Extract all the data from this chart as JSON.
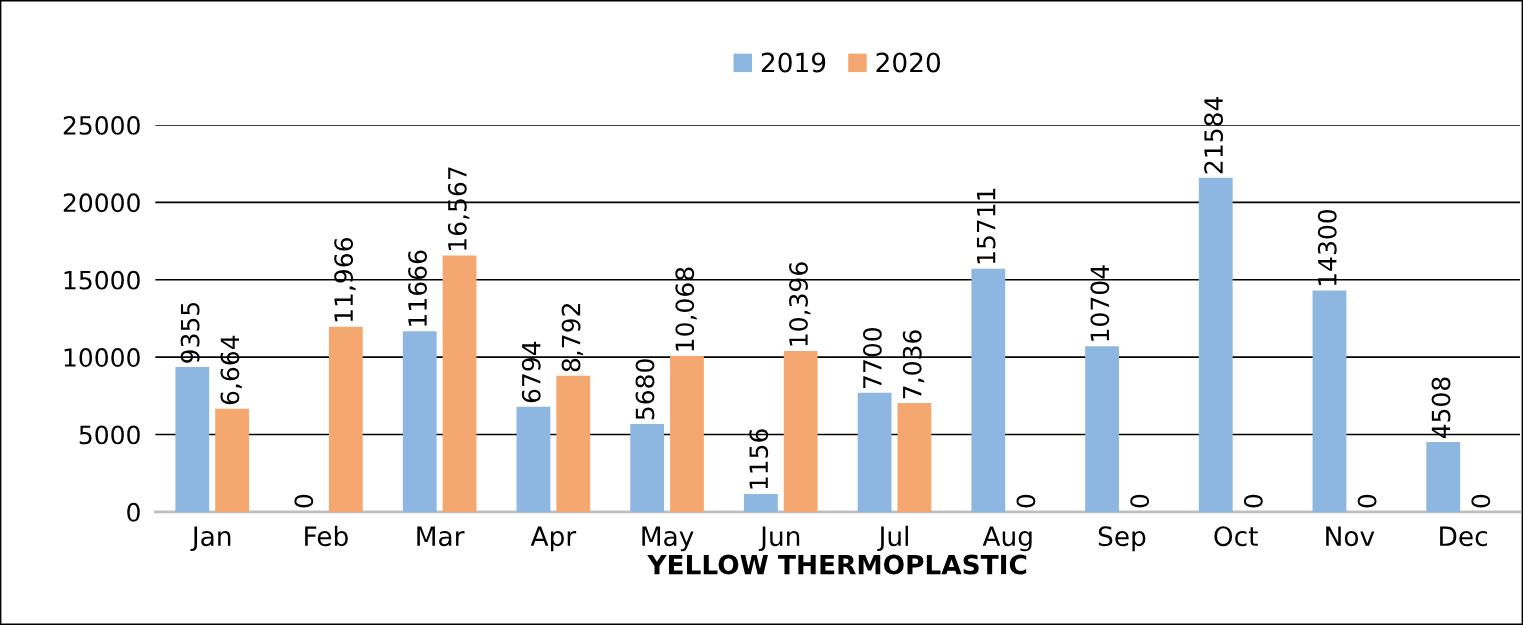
{
  "chart_data": {
    "type": "bar",
    "xlabel": "YELLOW THERMOPLASTIC",
    "categories": [
      "Jan",
      "Feb",
      "Mar",
      "Apr",
      "May",
      "Jun",
      "Jul",
      "Aug",
      "Sep",
      "Oct",
      "Nov",
      "Dec"
    ],
    "series": [
      {
        "name": "2019",
        "color": "#8db7e0",
        "values": [
          9355,
          0,
          11666,
          6794,
          5680,
          1156,
          7700,
          15711,
          10704,
          21584,
          14300,
          4508
        ],
        "value_labels": [
          "9355",
          "0",
          "11666",
          "6794",
          "5680",
          "1156",
          "7700",
          "15711",
          "10704",
          "21584",
          "14300",
          "4508"
        ]
      },
      {
        "name": "2020",
        "color": "#f4a86f",
        "values": [
          6664,
          11966,
          16567,
          8792,
          10068,
          10396,
          7036,
          0,
          0,
          0,
          0,
          0
        ],
        "value_labels": [
          "6,664",
          "11,966",
          "16,567",
          "8,792",
          "10,068",
          "10,396",
          "7,036",
          "0",
          "0",
          "0",
          "0",
          "0"
        ]
      }
    ],
    "ylim": [
      0,
      25000
    ],
    "yticks": [
      0,
      5000,
      10000,
      15000,
      20000,
      25000
    ],
    "grid": "y",
    "legend": "top"
  }
}
